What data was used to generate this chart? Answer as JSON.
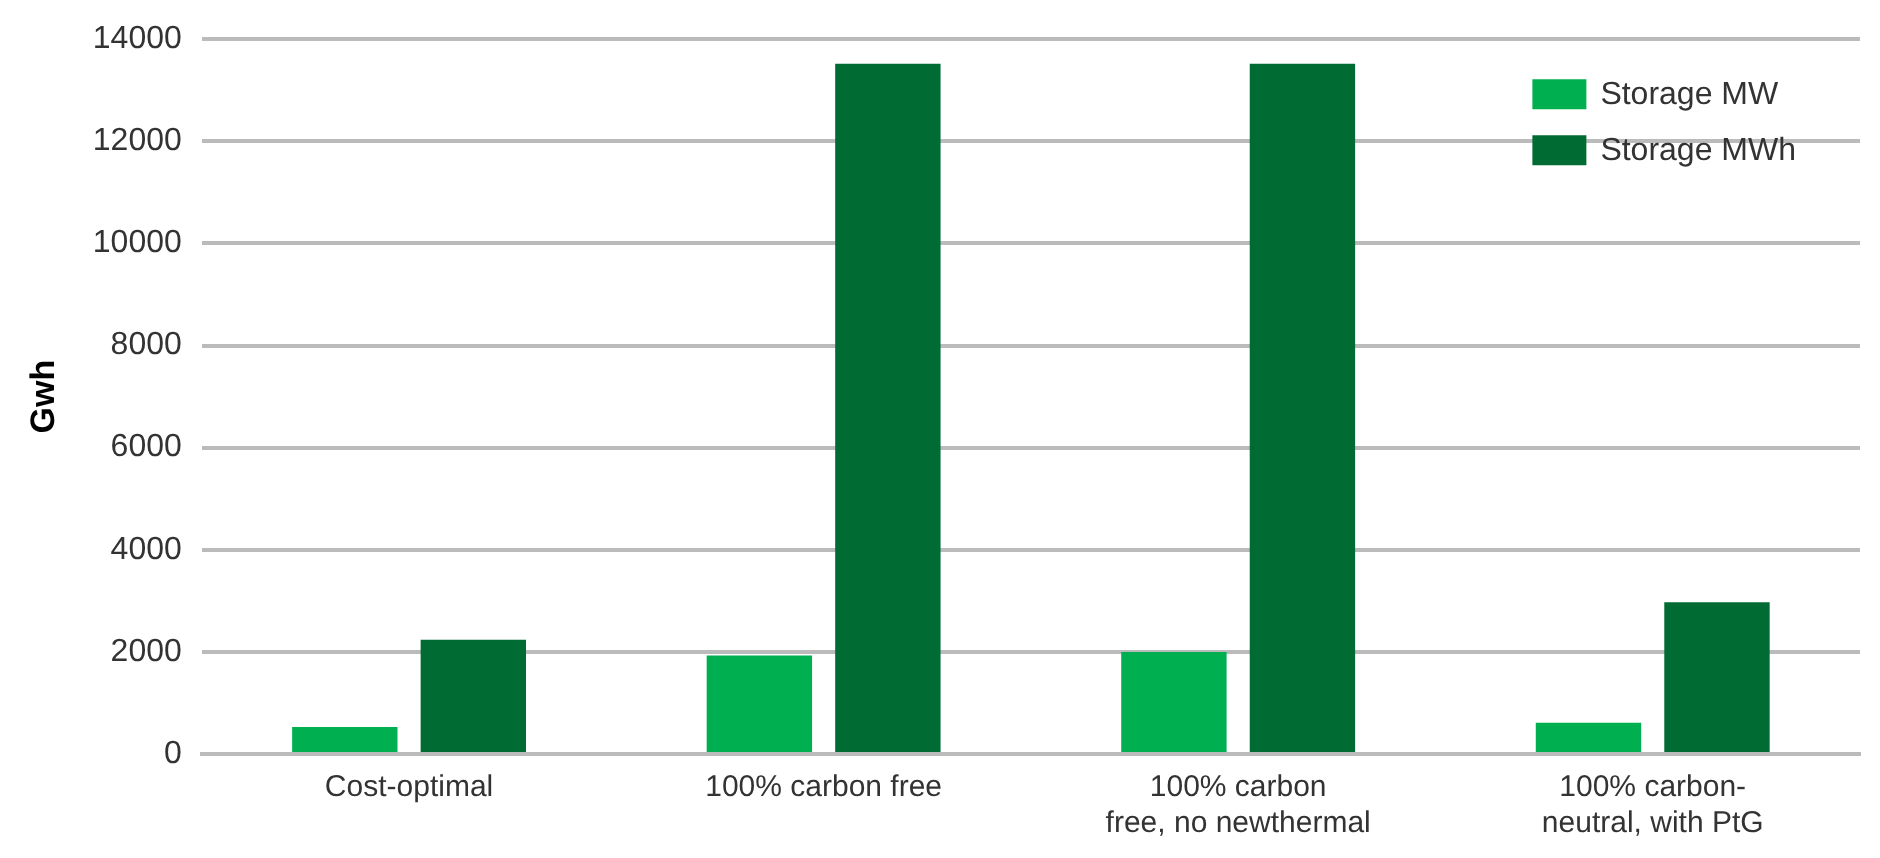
{
  "chart_data": {
    "type": "bar",
    "ylabel": "Gwh",
    "categories": [
      "Cost-optimal",
      "100% carbon free",
      "100% carbon\nfree, no newthermal",
      "100% carbon-\nneutral, with PtG"
    ],
    "series": [
      {
        "name": "Storage MW",
        "color": "#00b050",
        "values": [
          530,
          1930,
          2000,
          610
        ]
      },
      {
        "name": "Storage MWh",
        "color": "#006b33",
        "values": [
          2240,
          13520,
          13520,
          2970
        ]
      }
    ],
    "ylim": [
      0,
      14000
    ],
    "yticks": [
      0,
      2000,
      4000,
      6000,
      8000,
      10000,
      12000,
      14000
    ],
    "grid": "y",
    "legend": "top right"
  }
}
